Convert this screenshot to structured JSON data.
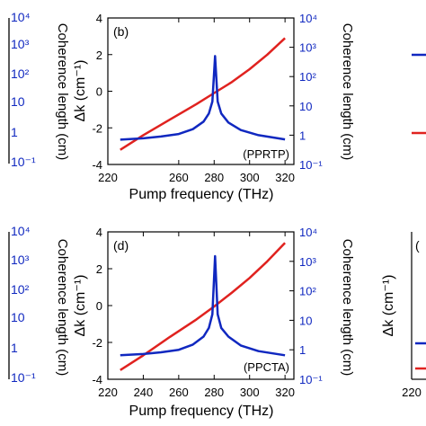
{
  "chart_data": [
    {
      "type": "line",
      "panel_label": "(b)",
      "crystal_label": "(PPRTP)",
      "xlabel": "Pump frequency (THz)",
      "ylabel_left": "Δk (cm⁻¹)",
      "ylabel_right": "Coherence length (cm)",
      "xlim": [
        220,
        325
      ],
      "xticks": [
        "220",
        "260",
        "280",
        "300",
        "320"
      ],
      "ylim_left": [
        -4,
        4
      ],
      "yticks_left": [
        "-4",
        "-2",
        "0",
        "2",
        "4"
      ],
      "yscale_right": "log",
      "ylim_right": [
        0.1,
        10000
      ],
      "yticks_right": [
        "10⁻¹",
        "1",
        "10",
        "10²",
        "10³",
        "10⁴"
      ],
      "grid": false,
      "series": [
        {
          "axis": "left",
          "color": "#e0221f",
          "x": [
            227,
            240,
            255,
            270,
            280,
            290,
            300,
            310,
            320
          ],
          "values": [
            -3.2,
            -2.4,
            -1.55,
            -0.7,
            -0.1,
            0.5,
            1.2,
            2.0,
            2.9
          ]
        },
        {
          "axis": "right",
          "color": "#1028c0",
          "x": [
            227,
            240,
            250,
            260,
            268,
            274,
            277,
            279,
            280.5,
            282,
            284,
            288,
            295,
            305,
            320
          ],
          "values": [
            0.7,
            0.78,
            0.9,
            1.1,
            1.6,
            2.9,
            5.5,
            14,
            500,
            14,
            5.5,
            2.7,
            1.5,
            1.0,
            0.72
          ]
        }
      ]
    },
    {
      "type": "line",
      "panel_label": "(d)",
      "crystal_label": "(PPCTA)",
      "xlabel": "Pump frequency (THz)",
      "ylabel_left": "Δk (cm⁻¹)",
      "ylabel_right": "Coherence length (cm)",
      "xlim": [
        220,
        325
      ],
      "xticks": [
        "220",
        "240",
        "260",
        "280",
        "300",
        "320"
      ],
      "ylim_left": [
        -4,
        4
      ],
      "yticks_left": [
        "-4",
        "-2",
        "0",
        "2",
        "4"
      ],
      "yscale_right": "log",
      "ylim_right": [
        0.1,
        10000
      ],
      "yticks_right": [
        "10⁻¹",
        "1",
        "10",
        "10²",
        "10³",
        "10⁴"
      ],
      "grid": false,
      "series": [
        {
          "axis": "left",
          "color": "#e0221f",
          "x": [
            227,
            240,
            255,
            270,
            280,
            290,
            300,
            310,
            320
          ],
          "values": [
            -3.5,
            -2.7,
            -1.7,
            -0.75,
            -0.05,
            0.7,
            1.5,
            2.4,
            3.4
          ]
        },
        {
          "axis": "right",
          "color": "#1028c0",
          "x": [
            227,
            240,
            250,
            260,
            268,
            274,
            277,
            279,
            280.5,
            282,
            284,
            288,
            295,
            305,
            320
          ],
          "values": [
            0.65,
            0.72,
            0.82,
            1.0,
            1.5,
            2.8,
            5.5,
            16,
            1500,
            16,
            5.5,
            2.8,
            1.4,
            0.9,
            0.65
          ]
        }
      ]
    }
  ],
  "left_partial": {
    "ylabel": "Coherence length (cm)",
    "ticks_top": [
      "10⁴",
      "10³",
      "10²",
      "10",
      "1",
      "10⁻¹"
    ],
    "ticks_bottom": [
      "10⁴",
      "10³",
      "10²",
      "10",
      "1",
      "10⁻¹"
    ]
  },
  "right_partial": {
    "legend_colors": [
      "#1028c0",
      "#e0221f"
    ],
    "bottom_ylabel": "Δk (cm⁻¹)",
    "bottom_xtick": "220",
    "bottom_panel_fragment": "("
  }
}
